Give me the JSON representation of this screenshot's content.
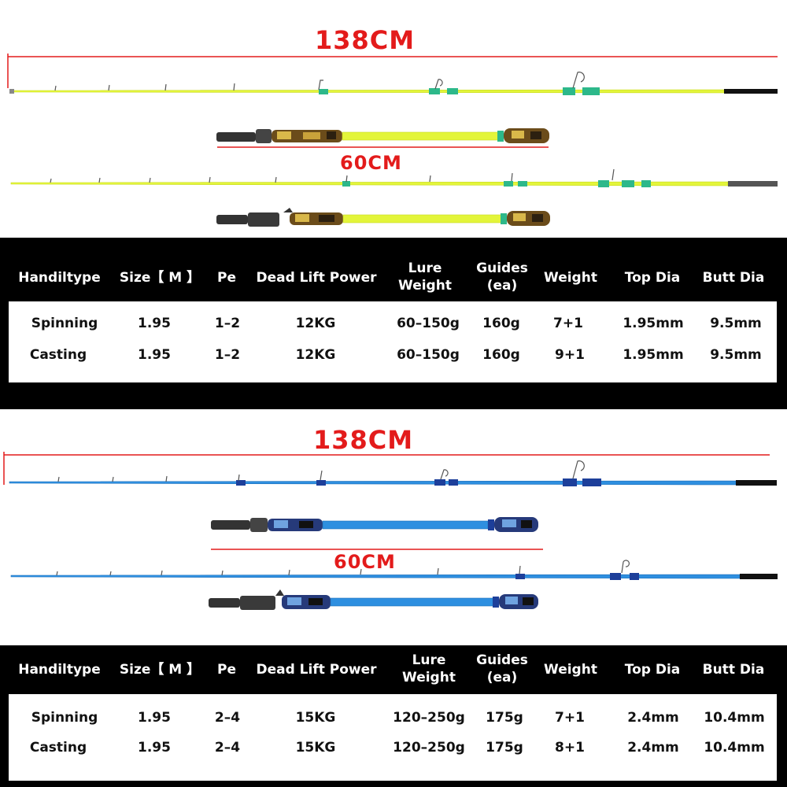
{
  "sections": [
    {
      "id": "yellow",
      "colors": {
        "blank": "#e3f53a",
        "blank_edge": "#c8da1f",
        "ring": "#2db88a",
        "grip": "#9c7a22"
      },
      "length_total": "138CM",
      "length_handle": "60CM",
      "headers": [
        "Handiltype",
        "Size【 M 】",
        "Pe",
        "Dead Lift Power",
        "Lure\nWeight",
        "Guides\n(ea)",
        "Weight",
        "Top Dia",
        "Butt Dia"
      ],
      "rows": [
        [
          "Spinning",
          "1.95",
          "1–2",
          "12KG",
          "60–150g",
          "160g",
          "7+1",
          "1.95mm",
          "9.5mm"
        ],
        [
          "Casting",
          "1.95",
          "1–2",
          "12KG",
          "60–150g",
          "160g",
          "9+1",
          "1.95mm",
          "9.5mm"
        ]
      ]
    },
    {
      "id": "blue",
      "colors": {
        "blank": "#2e8fe0",
        "blank_edge": "#1f6fb8",
        "ring": "#1d3f9a",
        "grip": "#2b4fa8"
      },
      "length_total": "138CM",
      "length_handle": "60CM",
      "headers": [
        "Handiltype",
        "Size【 M 】",
        "Pe",
        "Dead Lift Power",
        "Lure\nWeight",
        "Guides\n(ea)",
        "Weight",
        "Top Dia",
        "Butt Dia"
      ],
      "rows": [
        [
          "Spinning",
          "1.95",
          "2–4",
          "15KG",
          "120–250g",
          "175g",
          "7+1",
          "2.4mm",
          "10.4mm"
        ],
        [
          "Casting",
          "1.95",
          "2–4",
          "15KG",
          "120–250g",
          "175g",
          "8+1",
          "2.4mm",
          "10.4mm"
        ]
      ]
    }
  ]
}
